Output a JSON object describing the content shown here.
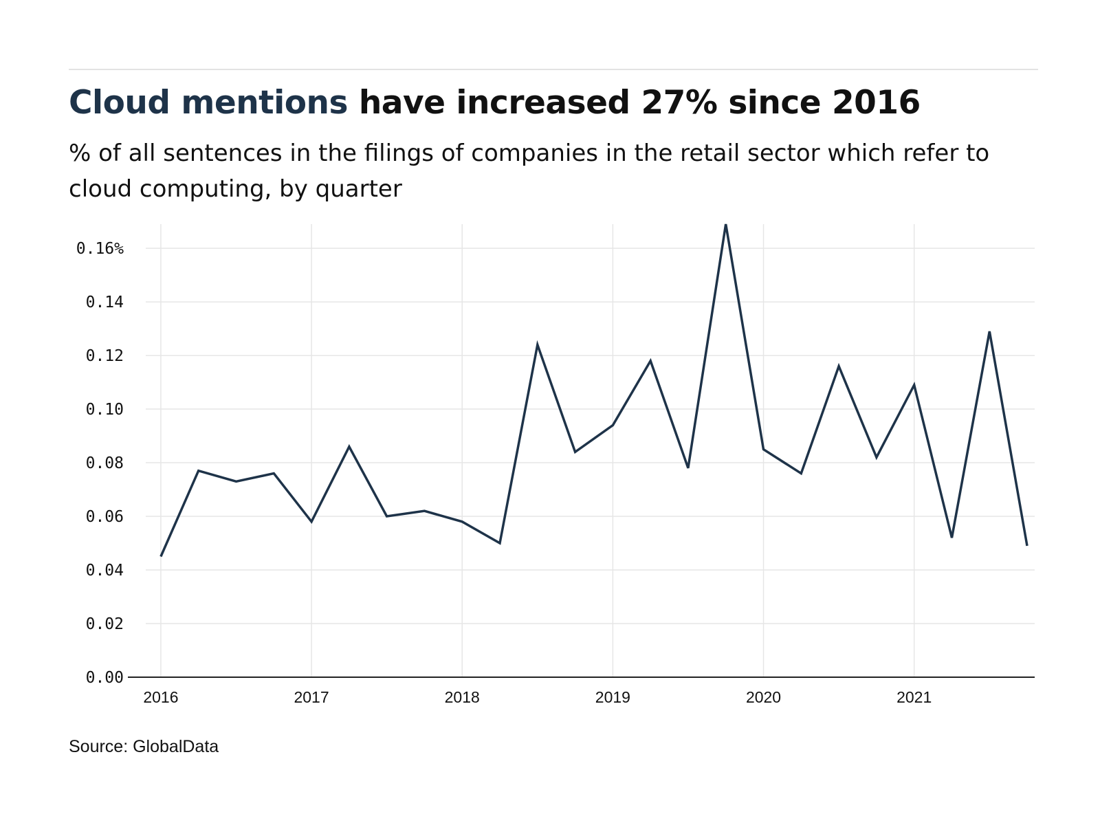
{
  "header": {
    "title_highlight": "Cloud mentions",
    "title_rest": " have increased 27% since 2016",
    "subtitle": "% of all sentences in the filings of companies in the retail sector which refer to cloud computing, by quarter"
  },
  "footer": {
    "source": "Source: GlobalData"
  },
  "colors": {
    "line": "#1e3349",
    "grid": "#e6e6e6",
    "axis": "#222222"
  },
  "chart_data": {
    "type": "line",
    "x": [
      2016.0,
      2016.25,
      2016.5,
      2016.75,
      2017.0,
      2017.25,
      2017.5,
      2017.75,
      2018.0,
      2018.25,
      2018.5,
      2018.75,
      2019.0,
      2019.25,
      2019.5,
      2019.75,
      2020.0,
      2020.25,
      2020.5,
      2020.75,
      2021.0,
      2021.25,
      2021.5,
      2021.75
    ],
    "series": [
      {
        "values": [
          0.045,
          0.077,
          0.073,
          0.076,
          0.058,
          0.086,
          0.06,
          0.062,
          0.058,
          0.05,
          0.124,
          0.084,
          0.094,
          0.118,
          0.078,
          0.169,
          0.085,
          0.076,
          0.116,
          0.082,
          0.109,
          0.052,
          0.129,
          0.049
        ]
      }
    ],
    "xticks": [
      2016,
      2017,
      2018,
      2019,
      2020,
      2021
    ],
    "xtick_labels": [
      "2016",
      "2017",
      "2018",
      "2019",
      "2020",
      "2021"
    ],
    "yticks": [
      0.0,
      0.02,
      0.04,
      0.06,
      0.08,
      0.1,
      0.12,
      0.14,
      0.16
    ],
    "ytick_labels": [
      "0.00",
      "0.02",
      "0.04",
      "0.06",
      "0.08",
      "0.10",
      "0.12",
      "0.14",
      "0.16%"
    ],
    "xlim": [
      2015.9,
      2021.8
    ],
    "ylim": [
      0,
      0.169
    ],
    "grid": true
  }
}
